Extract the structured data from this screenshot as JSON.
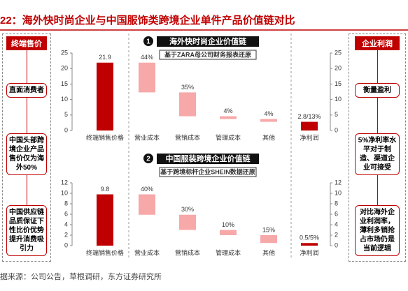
{
  "title": "22：海外快时尚企业与中国服饰类跨境企业单件产品价值链对比",
  "source": "据来源：公司公告，草根调研，东方证券研究所",
  "left_panel": {
    "header": "终端售价",
    "boxes": [
      "直面消费者",
      "中国头部跨境企业产品售价仅为海外50%",
      "中国供应链品质保证下性比价优势提升消费吸引力"
    ]
  },
  "right_panel": {
    "header": "企业利润",
    "boxes": [
      "衡量盈利",
      "5%净利率水平对于制造、渠道企业可接受",
      "对比海外企业利润率，薄利多销抢占市场仍是当前逻辑"
    ]
  },
  "chart_data": [
    {
      "type": "waterfall",
      "marker": "1",
      "title": "海外快时尚企业价值链",
      "subtitle": "基于ZARA母公司财务报表还原",
      "categories": [
        "终端销售价格",
        "营业成本",
        "营销成本",
        "管理成本",
        "其他",
        "净利润"
      ],
      "values": [
        21.9,
        9.6,
        7.7,
        0.9,
        0.9,
        2.8
      ],
      "bar_labels": [
        "21.9",
        "44%",
        "35%",
        "4%",
        "4%",
        "2.8/13%"
      ],
      "total_color": "#c00000",
      "step_color": "#f7a8a8",
      "ylim": [
        0,
        25
      ],
      "yticks": [
        0,
        5,
        10,
        15,
        20,
        25
      ]
    },
    {
      "type": "waterfall",
      "marker": "2",
      "title": "中国服装跨境企业价值链",
      "subtitle": "基于跨境标杆企业SHEIN数据还原",
      "categories": [
        "终端销售价格",
        "营业成本",
        "营销成本",
        "管理成本",
        "其他",
        "净利润"
      ],
      "values": [
        9.8,
        3.9,
        2.9,
        1.0,
        1.5,
        0.5
      ],
      "bar_labels": [
        "9.8",
        "40%",
        "30%",
        "10%",
        "15%",
        "0.5/5%"
      ],
      "total_color": "#c00000",
      "step_color": "#f7a8a8",
      "ylim": [
        0,
        12
      ],
      "yticks": [
        0,
        2,
        4,
        6,
        8,
        10,
        12
      ]
    }
  ]
}
